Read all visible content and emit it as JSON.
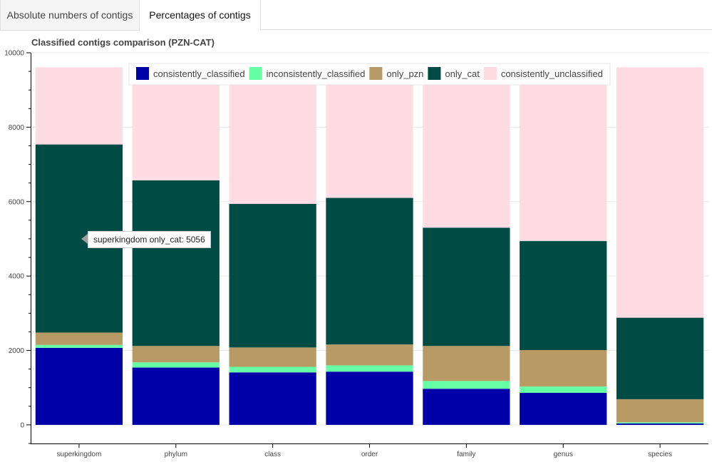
{
  "tabs": [
    {
      "label": "Absolute numbers of contigs",
      "active": false
    },
    {
      "label": "Percentages of contigs",
      "active": true
    }
  ],
  "tooltip": {
    "text": "superkingdom only_cat: 5056"
  },
  "chart_data": {
    "type": "bar",
    "stacked": true,
    "title": "Classified contigs comparison (PZN-CAT)",
    "xlabel": "",
    "ylabel": "",
    "ylim": [
      -500,
      10000
    ],
    "yticks": [
      0,
      2000,
      4000,
      6000,
      8000,
      10000
    ],
    "grid": true,
    "legend_position": "top",
    "categories": [
      "superkingdom",
      "phylum",
      "class",
      "order",
      "family",
      "genus",
      "species"
    ],
    "series": [
      {
        "name": "consistently_classified",
        "color": "#0000a8",
        "values": [
          2070,
          1540,
          1410,
          1430,
          970,
          860,
          40
        ]
      },
      {
        "name": "inconsistently_classified",
        "color": "#66ffa6",
        "values": [
          80,
          140,
          150,
          170,
          210,
          170,
          30
        ]
      },
      {
        "name": "only_pzn",
        "color": "#b89a64",
        "values": [
          330,
          440,
          520,
          560,
          940,
          980,
          620
        ]
      },
      {
        "name": "only_cat",
        "color": "#004c44",
        "values": [
          5056,
          4450,
          3860,
          3940,
          3180,
          2930,
          2190
        ]
      },
      {
        "name": "consistently_unclassified",
        "color": "#ffdbe4",
        "values": [
          2074,
          3040,
          3670,
          3510,
          4310,
          4670,
          6730
        ]
      }
    ]
  }
}
